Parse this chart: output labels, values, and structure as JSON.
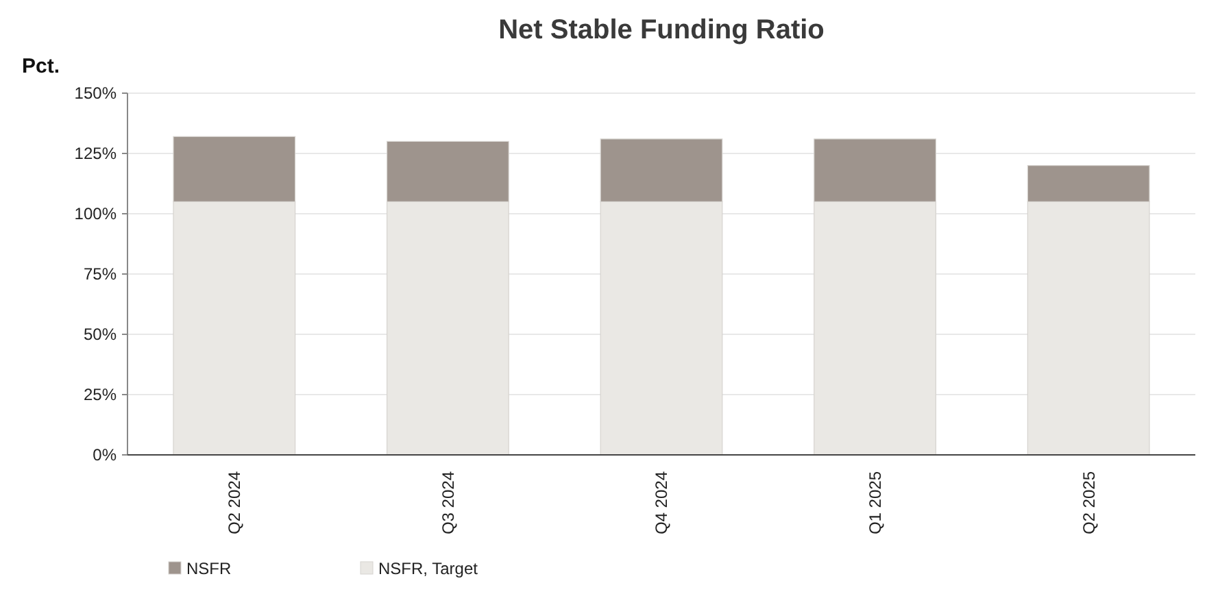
{
  "chart_data": {
    "type": "bar",
    "title": "Net Stable Funding Ratio",
    "ylabel": "Pct.",
    "categories": [
      "Q2 2024",
      "Q3 2024",
      "Q4 2024",
      "Q1 2025",
      "Q2 2025"
    ],
    "stacked": true,
    "series": [
      {
        "name": "NSFR, Target",
        "color": "#eae8e4",
        "values": [
          105,
          105,
          105,
          105,
          105
        ]
      },
      {
        "name": "NSFR",
        "color": "#9e948d",
        "values": [
          27,
          25,
          26,
          26,
          15
        ]
      }
    ],
    "ylim": [
      0,
      150
    ],
    "yticks": [
      {
        "value": 0,
        "label": "0%"
      },
      {
        "value": 25,
        "label": "25%"
      },
      {
        "value": 50,
        "label": "50%"
      },
      {
        "value": 75,
        "label": "75%"
      },
      {
        "value": 100,
        "label": "100%"
      },
      {
        "value": 125,
        "label": "125%"
      },
      {
        "value": 150,
        "label": "150%"
      }
    ],
    "grid": "y",
    "legend": "bottom left"
  }
}
